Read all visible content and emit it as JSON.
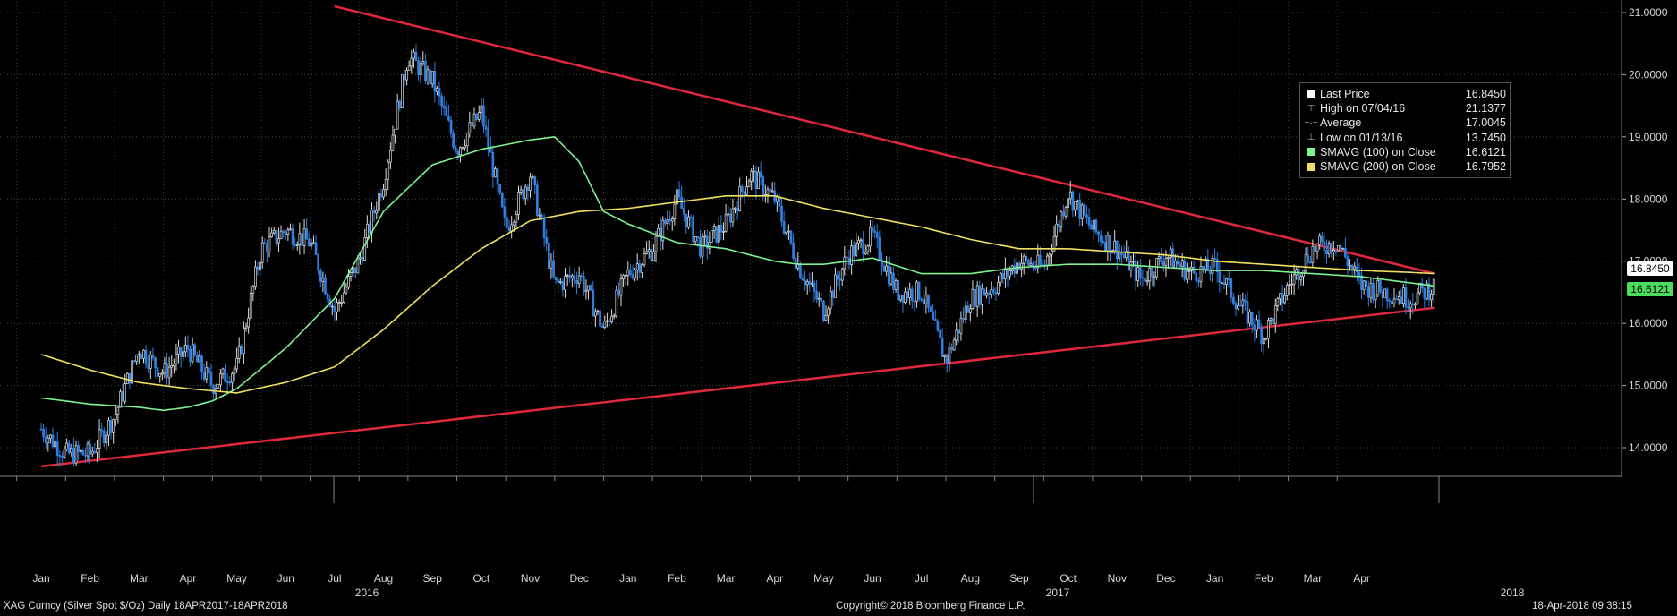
{
  "chart_data": {
    "type": "line",
    "title": "",
    "ylabel": "",
    "xlabel": "",
    "ylim": [
      13.6,
      21.2
    ],
    "y_ticks": [
      "14.0000",
      "15.0000",
      "16.0000",
      "17.0000",
      "18.0000",
      "19.0000",
      "20.0000",
      "21.0000"
    ],
    "month_ticks": [
      "Jan",
      "Feb",
      "Mar",
      "Apr",
      "May",
      "Jun",
      "Jul",
      "Aug",
      "Sep",
      "Oct",
      "Nov",
      "Dec",
      "Jan",
      "Feb",
      "Mar",
      "Apr",
      "May",
      "Jun",
      "Jul",
      "Aug",
      "Sep",
      "Oct",
      "Nov",
      "Dec",
      "Jan",
      "Feb",
      "Mar",
      "Apr"
    ],
    "year_ticks": [
      "2016",
      "2017",
      "2018"
    ],
    "grid": true,
    "legend_position": "top-right",
    "series": [
      {
        "name": "Last Price",
        "style": "candles",
        "x": [
          0,
          0.5,
          1,
          1.5,
          2,
          2.5,
          3,
          3.5,
          4,
          4.5,
          5,
          5.5,
          6,
          6.5,
          7,
          7.5,
          8,
          8.5,
          9,
          9.5,
          10,
          10.5,
          11,
          11.5,
          12,
          12.5,
          13,
          13.5,
          14,
          14.5,
          15,
          15.5,
          16,
          16.5,
          17,
          17.5,
          18,
          18.5,
          19,
          19.5,
          20,
          20.5,
          21,
          21.5,
          22,
          22.5,
          23,
          23.5,
          24,
          24.5,
          25,
          25.5,
          26,
          26.5,
          27,
          27.5,
          28,
          28.5
        ],
        "values": [
          14.3,
          13.9,
          13.9,
          14.5,
          15.6,
          15.2,
          15.6,
          15.0,
          15.3,
          17.2,
          17.5,
          17.3,
          16.2,
          17.0,
          18.3,
          20.3,
          19.9,
          18.8,
          19.4,
          17.5,
          18.4,
          16.6,
          16.8,
          15.9,
          16.8,
          17.2,
          18.0,
          17.2,
          17.6,
          18.4,
          18.0,
          16.9,
          16.2,
          17.1,
          17.4,
          16.5,
          16.5,
          15.4,
          16.4,
          16.6,
          17.0,
          16.9,
          18.1,
          17.5,
          17.2,
          16.7,
          17.1,
          16.8,
          16.9,
          16.3,
          15.8,
          16.6,
          17.2,
          17.3,
          16.6,
          16.5,
          16.4,
          16.6
        ]
      },
      {
        "name": "SMAVG (100) on Close",
        "color": "#7df28f",
        "x": [
          0,
          1,
          2,
          2.5,
          3,
          3.5,
          4,
          5,
          6,
          7,
          8,
          9,
          10,
          10.5,
          11,
          11.5,
          12,
          13,
          14,
          15,
          15.5,
          16,
          16.5,
          17,
          18,
          19,
          20,
          21,
          22,
          23,
          24,
          25,
          26,
          27,
          28,
          28.5
        ],
        "values": [
          14.8,
          14.7,
          14.65,
          14.6,
          14.65,
          14.75,
          14.95,
          15.6,
          16.4,
          17.8,
          18.55,
          18.8,
          18.95,
          19.0,
          18.6,
          17.8,
          17.6,
          17.3,
          17.2,
          17.0,
          16.95,
          16.95,
          17.0,
          17.05,
          16.8,
          16.8,
          16.9,
          16.95,
          16.95,
          16.9,
          16.85,
          16.85,
          16.8,
          16.75,
          16.65,
          16.6
        ]
      },
      {
        "name": "SMAVG (200) on Close",
        "color": "#f0e060",
        "x": [
          0,
          1,
          2,
          3,
          4,
          5,
          6,
          7,
          8,
          9,
          10,
          11,
          12,
          13,
          14,
          15,
          16,
          17,
          18,
          19,
          20,
          21,
          22,
          23,
          24,
          25,
          26,
          27,
          28,
          28.5
        ],
        "values": [
          15.5,
          15.25,
          15.05,
          14.95,
          14.88,
          15.05,
          15.3,
          15.9,
          16.6,
          17.2,
          17.65,
          17.8,
          17.85,
          17.95,
          18.05,
          18.05,
          17.85,
          17.7,
          17.55,
          17.35,
          17.2,
          17.2,
          17.15,
          17.1,
          17.0,
          16.95,
          16.9,
          16.85,
          16.82,
          16.8
        ]
      }
    ],
    "trendlines": [
      {
        "name": "upper-trendline",
        "x": [
          6.0,
          28.5
        ],
        "values": [
          21.1,
          16.8
        ],
        "color": "#e0283c"
      },
      {
        "name": "lower-trendline",
        "x": [
          0,
          28.5
        ],
        "values": [
          13.7,
          16.25
        ],
        "color": "#e0283c"
      }
    ],
    "last_value_tags": [
      {
        "text": "16.8450",
        "value": 16.845,
        "color": "#ffffff"
      },
      {
        "text": "16.6121",
        "value": 16.6121,
        "color": "#4bde5e"
      }
    ]
  },
  "legend": {
    "items": [
      {
        "label": "Last Price",
        "value": "16.8450",
        "symbol": "box",
        "color": "#ffffff"
      },
      {
        "label": "High on 07/04/16",
        "value": "21.1377",
        "symbol": "high"
      },
      {
        "label": "Average",
        "value": "17.0045",
        "symbol": "avg"
      },
      {
        "label": "Low on 01/13/16",
        "value": "13.7450",
        "symbol": "low"
      },
      {
        "label": "SMAVG (100) on Close",
        "value": "16.6121",
        "symbol": "box",
        "color": "#7df28f"
      },
      {
        "label": "SMAVG (200) on Close",
        "value": "16.7952",
        "symbol": "box",
        "color": "#f0e060"
      }
    ]
  },
  "footer": {
    "ticker": "XAG Curncy (Silver Spot  $/Oz)  Daily 18APR2017-18APR2018",
    "copyright": "Copyright© 2018 Bloomberg Finance L.P.",
    "timestamp": "18-Apr-2018 09:38:15"
  }
}
